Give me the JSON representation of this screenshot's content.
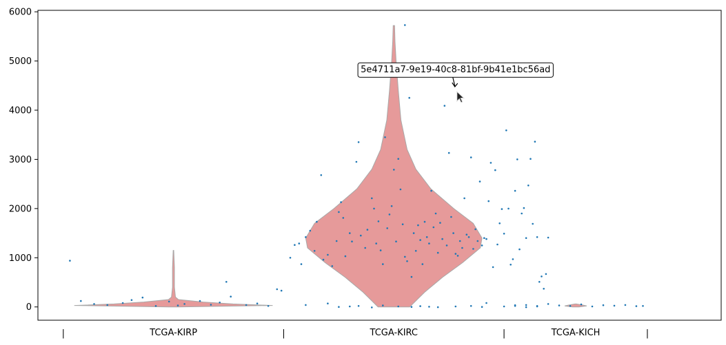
{
  "chart_data": {
    "type": "violin",
    "title": "",
    "xlabel": "",
    "ylabel": "",
    "ylim": [
      -270,
      6030
    ],
    "yticks": [
      0,
      1000,
      2000,
      3000,
      4000,
      5000,
      6000
    ],
    "ytick_labels": [
      "0",
      "1000",
      "2000",
      "3000",
      "4000",
      "5000",
      "6000"
    ],
    "categories": [
      "TCGA-KIRP",
      "TCGA-KIRC",
      "TCGA-KICH"
    ],
    "group_x_ranges": [
      [
        0,
        1
      ],
      [
        1,
        2
      ],
      [
        2,
        2.65
      ]
    ],
    "group_separators": [
      0,
      1,
      2,
      2.65
    ],
    "separator_label": "|",
    "violin_color": "#e69a9a",
    "point_color": "#1f77b4",
    "violins": [
      {
        "category": "TCGA-KIRP",
        "center": 0.5,
        "max_half_width": 0.45,
        "profile": [
          [
            0,
            0.05
          ],
          [
            30,
            1
          ],
          [
            60,
            0.6
          ],
          [
            100,
            0.3
          ],
          [
            150,
            0.05
          ],
          [
            200,
            0.02
          ],
          [
            400,
            0.01
          ],
          [
            800,
            0.01
          ],
          [
            1150,
            0.003
          ]
        ]
      },
      {
        "category": "TCGA-KIRC",
        "center": 1.5,
        "max_half_width": 0.4,
        "profile": [
          [
            0,
            0.18
          ],
          [
            300,
            0.35
          ],
          [
            600,
            0.55
          ],
          [
            900,
            0.78
          ],
          [
            1200,
            0.98
          ],
          [
            1400,
            1.0
          ],
          [
            1700,
            0.9
          ],
          [
            2000,
            0.68
          ],
          [
            2400,
            0.42
          ],
          [
            2800,
            0.25
          ],
          [
            3200,
            0.15
          ],
          [
            3800,
            0.08
          ],
          [
            4400,
            0.05
          ],
          [
            5000,
            0.025
          ],
          [
            5400,
            0.013
          ],
          [
            5720,
            0.008
          ]
        ]
      },
      {
        "category": "TCGA-KICH",
        "center": 2.325,
        "max_half_width": 0.05,
        "profile": [
          [
            0,
            0.3
          ],
          [
            20,
            1
          ],
          [
            40,
            0.6
          ],
          [
            60,
            0.05
          ]
        ]
      }
    ],
    "points": [
      {
        "category": "TCGA-KIRP",
        "points": [
          [
            0.03,
            940
          ],
          [
            0.08,
            120
          ],
          [
            0.14,
            60
          ],
          [
            0.2,
            40
          ],
          [
            0.27,
            80
          ],
          [
            0.31,
            140
          ],
          [
            0.36,
            190
          ],
          [
            0.42,
            20
          ],
          [
            0.48,
            110
          ],
          [
            0.52,
            30
          ],
          [
            0.55,
            60
          ],
          [
            0.62,
            120
          ],
          [
            0.67,
            45
          ],
          [
            0.71,
            90
          ],
          [
            0.74,
            510
          ],
          [
            0.76,
            210
          ],
          [
            0.83,
            40
          ],
          [
            0.88,
            70
          ],
          [
            0.93,
            20
          ],
          [
            0.97,
            360
          ],
          [
            0.99,
            330
          ]
        ]
      },
      {
        "category": "TCGA-KIRC",
        "points": [
          [
            1.03,
            1000
          ],
          [
            1.05,
            1260
          ],
          [
            1.07,
            1290
          ],
          [
            1.08,
            870
          ],
          [
            1.1,
            1420
          ],
          [
            1.12,
            1550
          ],
          [
            1.14,
            1140
          ],
          [
            1.15,
            1730
          ],
          [
            1.17,
            2680
          ],
          [
            1.18,
            960
          ],
          [
            1.2,
            1060
          ],
          [
            1.22,
            830
          ],
          [
            1.24,
            1340
          ],
          [
            1.25,
            1930
          ],
          [
            1.26,
            2130
          ],
          [
            1.27,
            1810
          ],
          [
            1.28,
            1030
          ],
          [
            1.3,
            1500
          ],
          [
            1.31,
            1330
          ],
          [
            1.33,
            2950
          ],
          [
            1.34,
            3350
          ],
          [
            1.35,
            1450
          ],
          [
            1.37,
            1200
          ],
          [
            1.38,
            1570
          ],
          [
            1.4,
            2210
          ],
          [
            1.41,
            2000
          ],
          [
            1.42,
            1290
          ],
          [
            1.43,
            1740
          ],
          [
            1.44,
            1150
          ],
          [
            1.45,
            870
          ],
          [
            1.46,
            3450
          ],
          [
            1.47,
            1600
          ],
          [
            1.48,
            1880
          ],
          [
            1.49,
            2050
          ],
          [
            1.5,
            2790
          ],
          [
            1.51,
            1330
          ],
          [
            1.52,
            3010
          ],
          [
            1.53,
            2390
          ],
          [
            1.54,
            1680
          ],
          [
            1.55,
            1020
          ],
          [
            1.56,
            930
          ],
          [
            1.57,
            4250
          ],
          [
            1.58,
            610
          ],
          [
            1.59,
            1500
          ],
          [
            1.6,
            1140
          ],
          [
            1.61,
            1660
          ],
          [
            1.62,
            1360
          ],
          [
            1.63,
            870
          ],
          [
            1.64,
            1730
          ],
          [
            1.65,
            1420
          ],
          [
            1.66,
            1290
          ],
          [
            1.67,
            2360
          ],
          [
            1.68,
            1620
          ],
          [
            1.69,
            1900
          ],
          [
            1.7,
            1100
          ],
          [
            1.71,
            1710
          ],
          [
            1.72,
            1380
          ],
          [
            1.73,
            4090
          ],
          [
            1.74,
            1250
          ],
          [
            1.75,
            3130
          ],
          [
            1.76,
            1830
          ],
          [
            1.77,
            1500
          ],
          [
            1.78,
            1080
          ],
          [
            1.79,
            1040
          ],
          [
            1.8,
            1340
          ],
          [
            1.81,
            1200
          ],
          [
            1.82,
            2210
          ],
          [
            1.83,
            1470
          ],
          [
            1.84,
            1420
          ],
          [
            1.85,
            3040
          ],
          [
            1.86,
            1180
          ],
          [
            1.87,
            1580
          ],
          [
            1.88,
            1340
          ],
          [
            1.89,
            2550
          ],
          [
            1.9,
            1250
          ],
          [
            1.91,
            1400
          ],
          [
            1.92,
            1380
          ],
          [
            1.93,
            2150
          ],
          [
            1.94,
            2930
          ],
          [
            1.95,
            810
          ],
          [
            1.96,
            2780
          ],
          [
            1.97,
            1270
          ],
          [
            1.98,
            1700
          ],
          [
            1.99,
            1990
          ],
          [
            2.0,
            1490
          ],
          [
            2.01,
            3590
          ],
          [
            2.02,
            2000
          ],
          [
            2.03,
            860
          ],
          [
            2.04,
            970
          ],
          [
            2.05,
            2360
          ],
          [
            2.06,
            3000
          ],
          [
            2.07,
            1170
          ],
          [
            2.08,
            1900
          ],
          [
            2.09,
            2010
          ],
          [
            2.1,
            1400
          ],
          [
            2.11,
            2470
          ],
          [
            2.12,
            3010
          ],
          [
            2.13,
            1690
          ],
          [
            2.14,
            3360
          ],
          [
            2.15,
            1420
          ],
          [
            2.16,
            510
          ],
          [
            2.17,
            620
          ],
          [
            2.18,
            370
          ],
          [
            2.19,
            670
          ],
          [
            2.2,
            1410
          ],
          [
            1.3,
            10
          ],
          [
            1.34,
            20
          ],
          [
            1.4,
            -10
          ],
          [
            1.45,
            30
          ],
          [
            1.52,
            10
          ],
          [
            1.58,
            0
          ],
          [
            1.62,
            15
          ],
          [
            1.7,
            -5
          ],
          [
            1.78,
            10
          ],
          [
            1.85,
            20
          ],
          [
            1.9,
            0
          ],
          [
            2.0,
            10
          ],
          [
            2.1,
            -5
          ],
          [
            2.15,
            20
          ],
          [
            1.1,
            40
          ],
          [
            1.2,
            70
          ],
          [
            1.25,
            0
          ],
          [
            2.05,
            35
          ],
          [
            1.92,
            80
          ],
          [
            1.66,
            5
          ],
          [
            1.55,
            5730
          ]
        ]
      },
      {
        "category": "TCGA-KICH",
        "points": [
          [
            2.05,
            20
          ],
          [
            2.1,
            40
          ],
          [
            2.15,
            10
          ],
          [
            2.2,
            60
          ],
          [
            2.25,
            30
          ],
          [
            2.3,
            20
          ],
          [
            2.35,
            50
          ],
          [
            2.4,
            10
          ],
          [
            2.45,
            35
          ],
          [
            2.5,
            25
          ],
          [
            2.55,
            40
          ],
          [
            2.6,
            15
          ],
          [
            2.63,
            20
          ]
        ]
      }
    ],
    "annotation": {
      "text": "5e4711a7-9e19-40c8-81bf-9b41e1bc56ad",
      "point": [
        1.78,
        4420
      ],
      "text_pos": [
        1.78,
        4830
      ]
    }
  }
}
